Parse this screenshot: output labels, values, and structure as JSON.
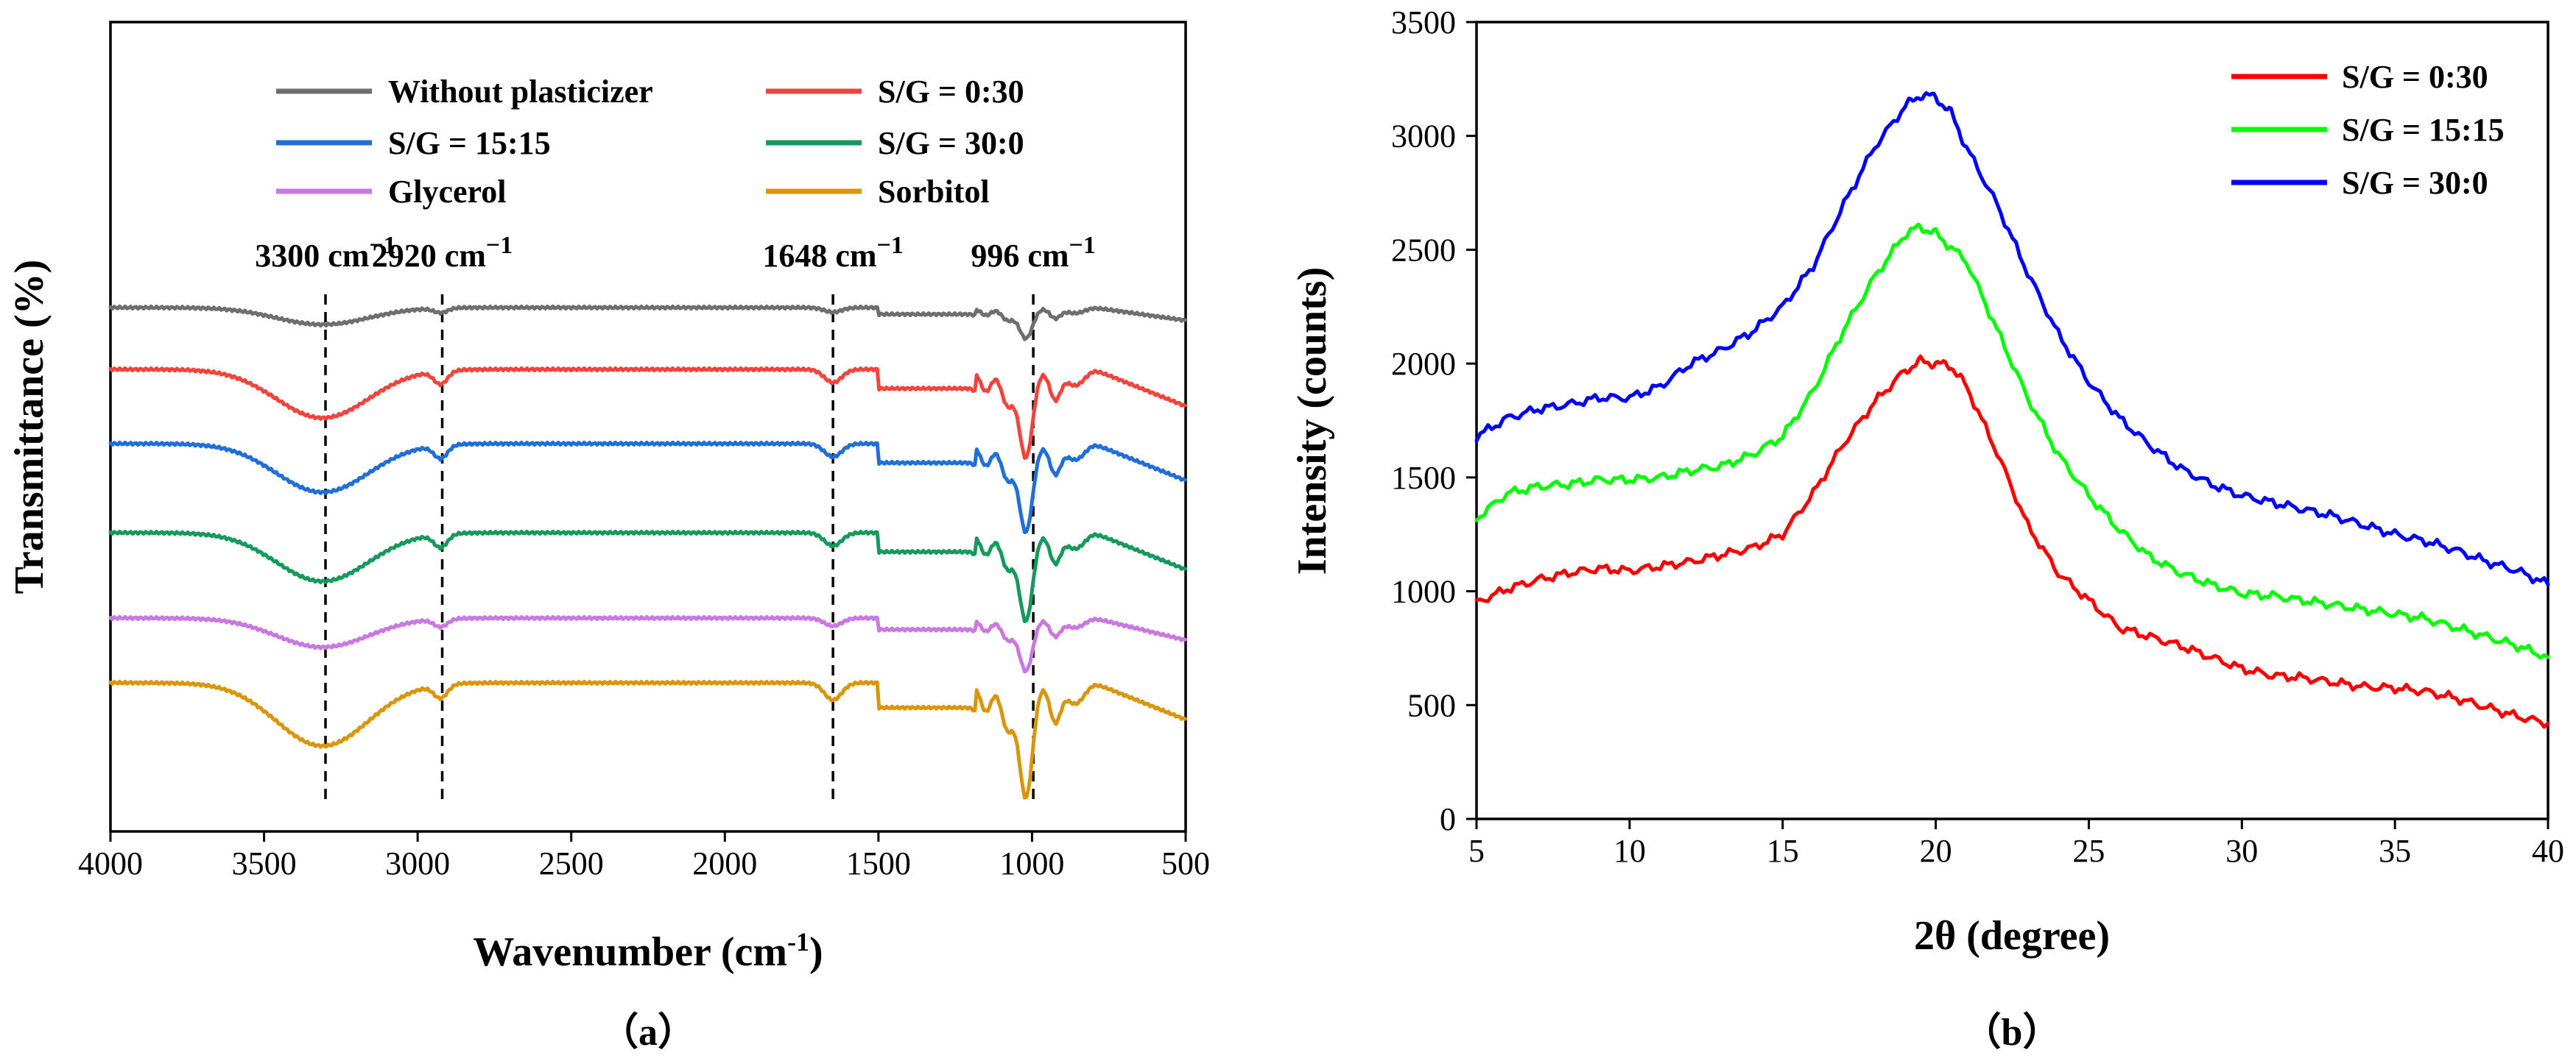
{
  "chart_data": [
    {
      "type": "line",
      "panel_label": "（a）",
      "xlabel": "Wavenumber (cm",
      "xlabel_sup": "-1",
      "xlabel_end": ")",
      "ylabel": "Transmittance (%)",
      "xlim": [
        4000,
        500
      ],
      "x_reversed": true,
      "x_ticks": [
        4000,
        3500,
        3000,
        2500,
        2000,
        1500,
        1000,
        500
      ],
      "y_ticks_shown": false,
      "legend_position": "top",
      "series": [
        {
          "name": "Without plasticizer",
          "color": "#6e6e6e",
          "baseline": 0.0,
          "band_scale": 0.35
        },
        {
          "name": "S/G = 0:30",
          "color": "#f0443c",
          "baseline": 1.0,
          "band_scale": 1.0
        },
        {
          "name": "S/G = 15:15",
          "color": "#1f6fd6",
          "baseline": 2.0,
          "band_scale": 1.0
        },
        {
          "name": "S/G = 30:0",
          "color": "#159a5c",
          "baseline": 3.15,
          "band_scale": 1.0
        },
        {
          "name": "Glycerol",
          "color": "#c878e0",
          "baseline": 4.3,
          "band_scale": 0.6
        },
        {
          "name": "Sorbitol",
          "color": "#d9960a",
          "baseline": 5.15,
          "band_scale": 1.3
        }
      ],
      "annotations": [
        {
          "label": "3300 cm",
          "sup": "−1",
          "x": 3300
        },
        {
          "label": "2920 cm",
          "sup": "−1",
          "x": 2920
        },
        {
          "label": "1648 cm",
          "sup": "−1",
          "x": 1648
        },
        {
          "label": "996 cm",
          "sup": "−1",
          "x": 996
        }
      ]
    },
    {
      "type": "line",
      "panel_label": "（b）",
      "xlabel": "2θ (degree)",
      "ylabel": "Intensity (counts)",
      "xlim": [
        5,
        40
      ],
      "ylim": [
        0,
        3500
      ],
      "x_ticks": [
        5,
        10,
        15,
        20,
        25,
        30,
        35,
        40
      ],
      "y_ticks": [
        0,
        500,
        1000,
        1500,
        2000,
        2500,
        3000,
        3500
      ],
      "legend_position": "top-right",
      "series": [
        {
          "name": "S/G = 0:30",
          "color": "#ff0000",
          "points": [
            [
              5,
              950
            ],
            [
              6,
              1010
            ],
            [
              7,
              1050
            ],
            [
              8,
              1080
            ],
            [
              9,
              1100
            ],
            [
              10,
              1090
            ],
            [
              11,
              1110
            ],
            [
              12,
              1130
            ],
            [
              13,
              1160
            ],
            [
              14,
              1190
            ],
            [
              15,
              1250
            ],
            [
              16,
              1430
            ],
            [
              17,
              1650
            ],
            [
              18,
              1830
            ],
            [
              19,
              1970
            ],
            [
              19.5,
              2010
            ],
            [
              20,
              2000
            ],
            [
              20.5,
              1990
            ],
            [
              21,
              1900
            ],
            [
              22,
              1610
            ],
            [
              23,
              1290
            ],
            [
              24,
              1080
            ],
            [
              25,
              960
            ],
            [
              26,
              840
            ],
            [
              27,
              800
            ],
            [
              28,
              760
            ],
            [
              29,
              710
            ],
            [
              30,
              660
            ],
            [
              31,
              630
            ],
            [
              32,
              620
            ],
            [
              33,
              600
            ],
            [
              34,
              580
            ],
            [
              35,
              575
            ],
            [
              36,
              560
            ],
            [
              37,
              530
            ],
            [
              38,
              490
            ],
            [
              39,
              450
            ],
            [
              40,
              420
            ]
          ]
        },
        {
          "name": "S/G = 15:15",
          "color": "#00ff00",
          "points": [
            [
              5,
              1320
            ],
            [
              6,
              1430
            ],
            [
              7,
              1460
            ],
            [
              8,
              1470
            ],
            [
              9,
              1490
            ],
            [
              10,
              1490
            ],
            [
              11,
              1500
            ],
            [
              12,
              1530
            ],
            [
              13,
              1550
            ],
            [
              14,
              1600
            ],
            [
              15,
              1680
            ],
            [
              16,
              1880
            ],
            [
              17,
              2150
            ],
            [
              18,
              2380
            ],
            [
              19,
              2570
            ],
            [
              19.5,
              2600
            ],
            [
              20,
              2570
            ],
            [
              21,
              2450
            ],
            [
              22,
              2150
            ],
            [
              23,
              1850
            ],
            [
              24,
              1600
            ],
            [
              25,
              1420
            ],
            [
              26,
              1270
            ],
            [
              27,
              1150
            ],
            [
              28,
              1080
            ],
            [
              29,
              1030
            ],
            [
              30,
              990
            ],
            [
              31,
              980
            ],
            [
              32,
              960
            ],
            [
              33,
              940
            ],
            [
              34,
              920
            ],
            [
              35,
              900
            ],
            [
              36,
              880
            ],
            [
              37,
              840
            ],
            [
              38,
              800
            ],
            [
              39,
              760
            ],
            [
              40,
              710
            ]
          ]
        },
        {
          "name": "S/G = 30:0",
          "color": "#0000ff",
          "points": [
            [
              5,
              1680
            ],
            [
              6,
              1760
            ],
            [
              7,
              1800
            ],
            [
              8,
              1820
            ],
            [
              9,
              1850
            ],
            [
              10,
              1850
            ],
            [
              11,
              1900
            ],
            [
              12,
              2000
            ],
            [
              13,
              2060
            ],
            [
              14,
              2140
            ],
            [
              15,
              2250
            ],
            [
              16,
              2430
            ],
            [
              17,
              2700
            ],
            [
              18,
              2950
            ],
            [
              19,
              3130
            ],
            [
              19.5,
              3180
            ],
            [
              20,
              3170
            ],
            [
              20.5,
              3100
            ],
            [
              21,
              2950
            ],
            [
              22,
              2700
            ],
            [
              23,
              2400
            ],
            [
              24,
              2130
            ],
            [
              25,
              1920
            ],
            [
              26,
              1760
            ],
            [
              27,
              1640
            ],
            [
              28,
              1540
            ],
            [
              29,
              1470
            ],
            [
              30,
              1420
            ],
            [
              31,
              1390
            ],
            [
              32,
              1360
            ],
            [
              33,
              1330
            ],
            [
              34,
              1290
            ],
            [
              35,
              1250
            ],
            [
              36,
              1220
            ],
            [
              37,
              1180
            ],
            [
              38,
              1130
            ],
            [
              39,
              1090
            ],
            [
              40,
              1030
            ]
          ]
        }
      ]
    }
  ]
}
